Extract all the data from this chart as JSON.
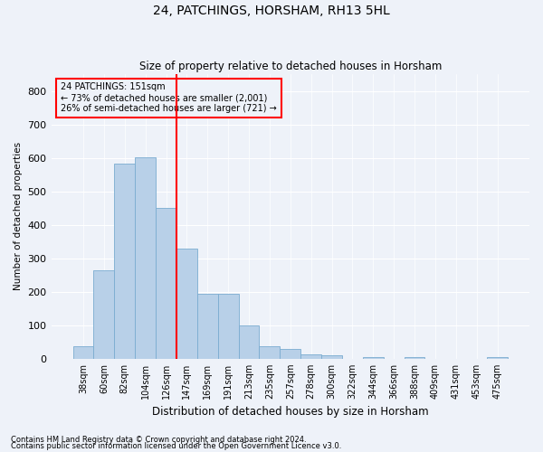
{
  "title": "24, PATCHINGS, HORSHAM, RH13 5HL",
  "subtitle": "Size of property relative to detached houses in Horsham",
  "xlabel": "Distribution of detached houses by size in Horsham",
  "ylabel": "Number of detached properties",
  "categories": [
    "38sqm",
    "60sqm",
    "82sqm",
    "104sqm",
    "126sqm",
    "147sqm",
    "169sqm",
    "191sqm",
    "213sqm",
    "235sqm",
    "257sqm",
    "278sqm",
    "300sqm",
    "322sqm",
    "344sqm",
    "366sqm",
    "388sqm",
    "409sqm",
    "431sqm",
    "453sqm",
    "475sqm"
  ],
  "values": [
    37,
    265,
    583,
    603,
    450,
    328,
    195,
    195,
    100,
    37,
    30,
    13,
    10,
    0,
    5,
    0,
    5,
    0,
    0,
    0,
    5
  ],
  "bar_color": "#b8d0e8",
  "bar_edge_color": "#7aacd0",
  "vline_index": 5,
  "vline_color": "red",
  "annotation_title": "24 PATCHINGS: 151sqm",
  "annotation_line1": "← 73% of detached houses are smaller (2,001)",
  "annotation_line2": "26% of semi-detached houses are larger (721) →",
  "annotation_box_color": "red",
  "ylim": [
    0,
    850
  ],
  "yticks": [
    0,
    100,
    200,
    300,
    400,
    500,
    600,
    700,
    800
  ],
  "footnote1": "Contains HM Land Registry data © Crown copyright and database right 2024.",
  "footnote2": "Contains public sector information licensed under the Open Government Licence v3.0.",
  "background_color": "#eef2f9",
  "grid_color": "white"
}
